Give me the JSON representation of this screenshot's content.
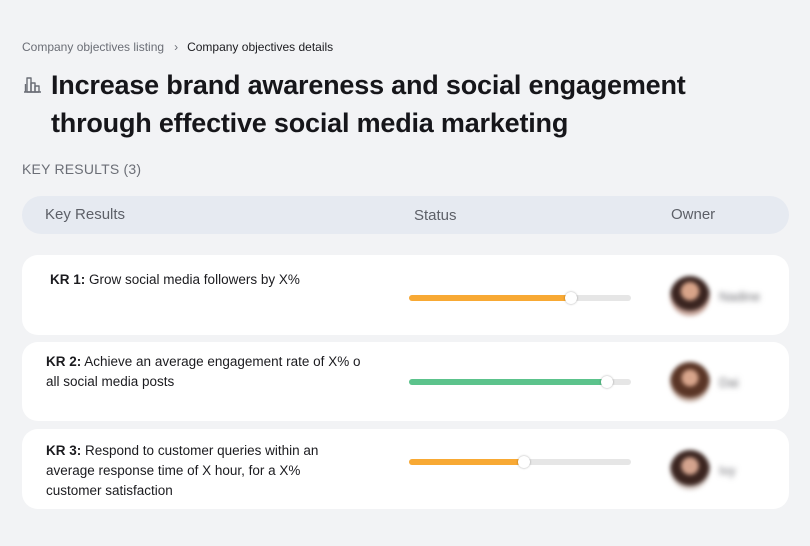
{
  "breadcrumb": {
    "items": [
      "Company objectives listing",
      "Company objectives details"
    ],
    "separator": "›"
  },
  "title_icon": "building-icon",
  "page_title": "Increase brand awareness and social engagement through effective social media marketing",
  "key_results_heading": "KEY RESULTS (3)",
  "table": {
    "columns": [
      "Key Results",
      "Status",
      "Owner"
    ]
  },
  "key_results": [
    {
      "label": "KR 1:",
      "text": " Grow social media followers by X%",
      "progress": 0.73,
      "progress_color": "#f8a934",
      "owner_name": "Nadine"
    },
    {
      "label": "KR 2:",
      "text": " Achieve an average engagement rate of X% o all social media posts",
      "progress": 0.89,
      "progress_color": "#5cc38c",
      "owner_name": "Dai"
    },
    {
      "label": "KR 3:",
      "text": " Respond to customer queries within an average response time of X hour, for a X% customer satisfaction",
      "progress": 0.52,
      "progress_color": "#f8a934",
      "owner_name": "Ivy"
    }
  ]
}
